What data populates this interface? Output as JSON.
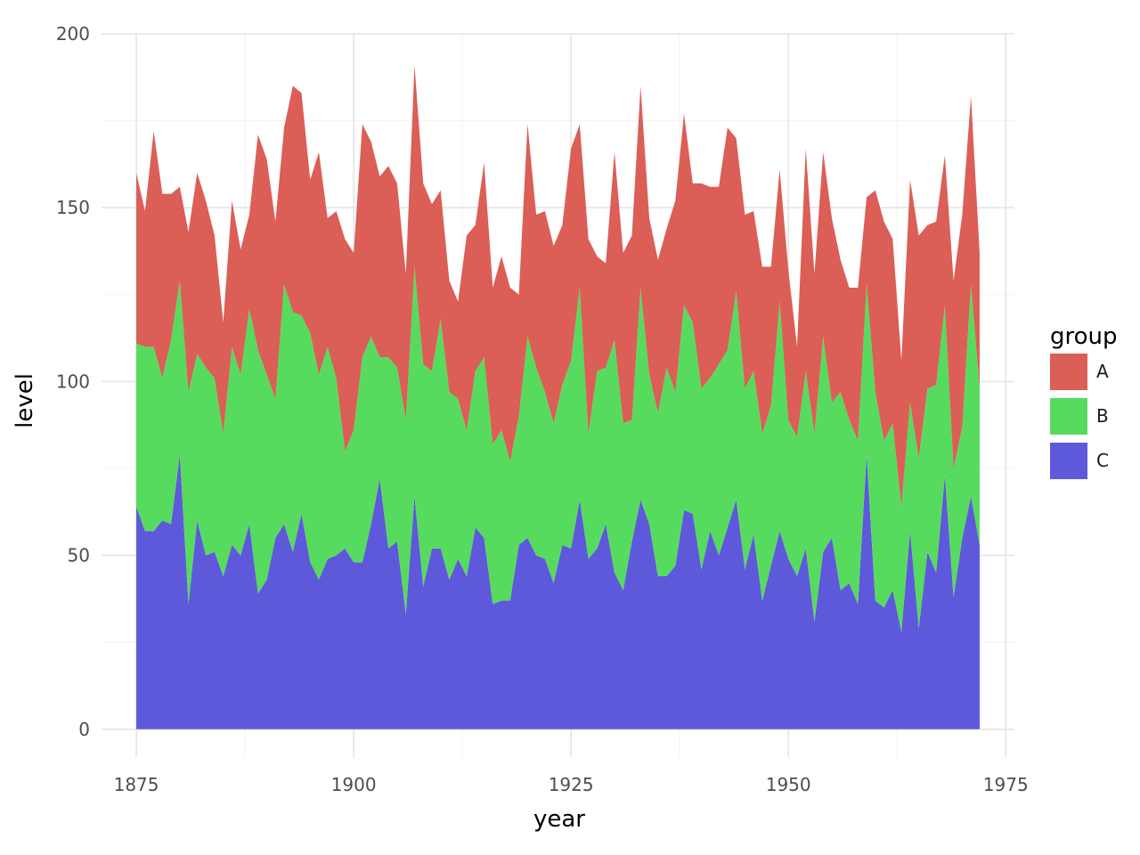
{
  "chart_data": {
    "type": "area",
    "stacked": true,
    "xlabel": "year",
    "ylabel": "level",
    "xlim": [
      1871,
      1976
    ],
    "ylim": [
      -8,
      200
    ],
    "x_ticks": [
      1875,
      1900,
      1925,
      1950,
      1975
    ],
    "y_ticks": [
      0,
      50,
      100,
      150,
      200
    ],
    "x_minor": [
      1887.5,
      1912.5,
      1937.5,
      1962.5
    ],
    "y_minor": [
      25,
      75,
      125,
      175
    ],
    "grid": true,
    "legend": {
      "title": "group",
      "position": "right"
    },
    "x": [
      1875,
      1876,
      1877,
      1878,
      1879,
      1880,
      1881,
      1882,
      1883,
      1884,
      1885,
      1886,
      1887,
      1888,
      1889,
      1890,
      1891,
      1892,
      1893,
      1894,
      1895,
      1896,
      1897,
      1898,
      1899,
      1900,
      1901,
      1902,
      1903,
      1904,
      1905,
      1906,
      1907,
      1908,
      1909,
      1910,
      1911,
      1912,
      1913,
      1914,
      1915,
      1916,
      1917,
      1918,
      1919,
      1920,
      1921,
      1922,
      1923,
      1924,
      1925,
      1926,
      1927,
      1928,
      1929,
      1930,
      1931,
      1932,
      1933,
      1934,
      1935,
      1936,
      1937,
      1938,
      1939,
      1940,
      1941,
      1942,
      1943,
      1944,
      1945,
      1946,
      1947,
      1948,
      1949,
      1950,
      1951,
      1952,
      1953,
      1954,
      1955,
      1956,
      1957,
      1958,
      1959,
      1960,
      1961,
      1962,
      1963,
      1964,
      1965,
      1966,
      1967,
      1968,
      1969,
      1970,
      1971,
      1972
    ],
    "series": [
      {
        "name": "C",
        "color": "#5e59db",
        "values": [
          64,
          57,
          57,
          60,
          59,
          79,
          36,
          60,
          50,
          51,
          44,
          53,
          50,
          59,
          39,
          43,
          55,
          59,
          51,
          62,
          48,
          43,
          49,
          50,
          52,
          48,
          48,
          59,
          72,
          52,
          54,
          33,
          67,
          41,
          52,
          52,
          43,
          49,
          44,
          58,
          55,
          36,
          37,
          37,
          53,
          55,
          50,
          49,
          42,
          53,
          52,
          66,
          49,
          52,
          59,
          45,
          40,
          54,
          66,
          59,
          44,
          44,
          47,
          63,
          62,
          46,
          57,
          50,
          58,
          66,
          46,
          56,
          37,
          47,
          57,
          49,
          44,
          52,
          31,
          51,
          55,
          40,
          42,
          36,
          79,
          37,
          35,
          40,
          28,
          57,
          29,
          51,
          45,
          73,
          38,
          55,
          67,
          53
        ]
      },
      {
        "name": "B",
        "color": "#57db5e",
        "values": [
          47,
          53,
          53,
          41,
          53,
          50,
          61,
          48,
          54,
          50,
          41,
          57,
          52,
          62,
          70,
          59,
          40,
          69,
          69,
          57,
          66,
          59,
          61,
          51,
          28,
          38,
          59,
          54,
          35,
          55,
          50,
          56,
          66,
          64,
          51,
          66,
          54,
          46,
          42,
          45,
          52,
          46,
          49,
          40,
          37,
          58,
          54,
          48,
          46,
          46,
          54,
          61,
          36,
          51,
          45,
          67,
          48,
          35,
          61,
          43,
          47,
          60,
          50,
          59,
          55,
          52,
          44,
          55,
          51,
          60,
          52,
          47,
          48,
          46,
          66,
          40,
          40,
          51,
          54,
          62,
          39,
          57,
          47,
          47,
          49,
          60,
          48,
          48,
          36,
          37,
          49,
          47,
          54,
          49,
          37,
          32,
          61,
          45
        ]
      },
      {
        "name": "A",
        "color": "#db5e57",
        "values": [
          49,
          39,
          62,
          53,
          42,
          27,
          46,
          52,
          48,
          41,
          32,
          42,
          36,
          27,
          62,
          62,
          51,
          45,
          65,
          64,
          44,
          64,
          37,
          48,
          61,
          51,
          67,
          56,
          52,
          55,
          53,
          42,
          58,
          52,
          48,
          37,
          32,
          28,
          56,
          42,
          56,
          45,
          50,
          50,
          35,
          61,
          44,
          52,
          51,
          46,
          61,
          47,
          56,
          33,
          30,
          54,
          49,
          53,
          58,
          45,
          44,
          40,
          55,
          55,
          40,
          59,
          55,
          51,
          64,
          44,
          50,
          46,
          48,
          40,
          38,
          43,
          26,
          64,
          46,
          53,
          53,
          38,
          38,
          44,
          25,
          58,
          63,
          53,
          42,
          64,
          64,
          47,
          47,
          43,
          54,
          61,
          54,
          39
        ]
      }
    ]
  }
}
